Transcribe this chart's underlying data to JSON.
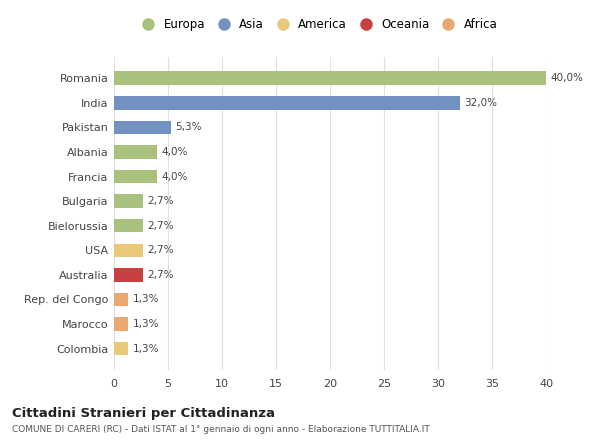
{
  "categories": [
    "Romania",
    "India",
    "Pakistan",
    "Albania",
    "Francia",
    "Bulgaria",
    "Bielorussia",
    "USA",
    "Australia",
    "Rep. del Congo",
    "Marocco",
    "Colombia"
  ],
  "values": [
    40.0,
    32.0,
    5.3,
    4.0,
    4.0,
    2.7,
    2.7,
    2.7,
    2.7,
    1.3,
    1.3,
    1.3
  ],
  "labels": [
    "40,0%",
    "32,0%",
    "5,3%",
    "4,0%",
    "4,0%",
    "2,7%",
    "2,7%",
    "2,7%",
    "2,7%",
    "1,3%",
    "1,3%",
    "1,3%"
  ],
  "colors": [
    "#a8c17c",
    "#7191c0",
    "#7191c0",
    "#a8c17c",
    "#a8c17c",
    "#a8c17c",
    "#a8c17c",
    "#e8c97a",
    "#c94040",
    "#e8a870",
    "#e8a870",
    "#e8c97a"
  ],
  "legend_labels": [
    "Europa",
    "Asia",
    "America",
    "Oceania",
    "Africa"
  ],
  "legend_colors": [
    "#a8c17c",
    "#7191c0",
    "#e8c97a",
    "#c94040",
    "#e8a870"
  ],
  "title": "Cittadini Stranieri per Cittadinanza",
  "subtitle": "COMUNE DI CARERI (RC) - Dati ISTAT al 1° gennaio di ogni anno - Elaborazione TUTTITALIA.IT",
  "xlim": [
    0,
    40
  ],
  "xticks": [
    0,
    5,
    10,
    15,
    20,
    25,
    30,
    35,
    40
  ],
  "bg_color": "#ffffff",
  "grid_color": "#e0e0e0",
  "bar_height": 0.55
}
